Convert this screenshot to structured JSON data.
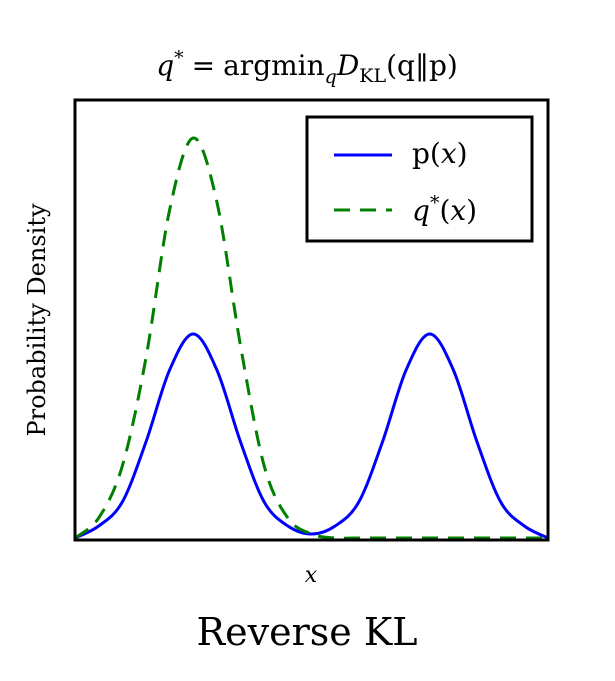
{
  "chart_data": {
    "type": "line",
    "title": "q* = argmin_q D_KL(q‖p)",
    "title_parts": {
      "lhs": "q",
      "sup": "*",
      "eq": "=",
      "op": "argmin",
      "op_sub": "q",
      "d": "D",
      "d_sub": "KL",
      "args": "(q‖p)"
    },
    "subtitle": "Reverse KL",
    "xlabel": "x",
    "ylabel": "Probability Density",
    "xlim": [
      0,
      10
    ],
    "ylim": [
      0,
      1
    ],
    "grid": false,
    "legend": {
      "placement": "top-right"
    },
    "series": [
      {
        "name": "p(x)",
        "legend_parts": {
          "prefix": "p(",
          "var": "x",
          "suffix": ")"
        },
        "color": "#0000ff",
        "style": "solid",
        "x": [
          0,
          0.5,
          1.0,
          1.5,
          2.0,
          2.5,
          3.0,
          3.5,
          4.0,
          4.5,
          5.0,
          5.5,
          6.0,
          6.5,
          7.0,
          7.5,
          8.0,
          8.5,
          9.0,
          9.5,
          10.0
        ],
        "y": [
          0.0,
          0.03,
          0.09,
          0.24,
          0.42,
          0.51,
          0.42,
          0.24,
          0.09,
          0.03,
          0.01,
          0.03,
          0.09,
          0.24,
          0.42,
          0.51,
          0.42,
          0.24,
          0.09,
          0.03,
          0.0
        ]
      },
      {
        "name": "q*(x)",
        "legend_parts": {
          "var": "q",
          "sup": "*",
          "args_open": "(",
          "args_var": "x",
          "args_close": ")"
        },
        "color": "#007f00",
        "style": "dashed",
        "x": [
          0,
          0.5,
          1.0,
          1.5,
          2.0,
          2.5,
          3.0,
          3.5,
          4.0,
          4.5,
          5.0,
          5.5,
          6.0,
          7.0,
          8.0,
          9.0,
          10.0
        ],
        "y": [
          0.0,
          0.05,
          0.18,
          0.45,
          0.82,
          1.0,
          0.84,
          0.48,
          0.18,
          0.05,
          0.01,
          0.0,
          0.0,
          0.0,
          0.0,
          0.0,
          0.0
        ]
      }
    ]
  }
}
